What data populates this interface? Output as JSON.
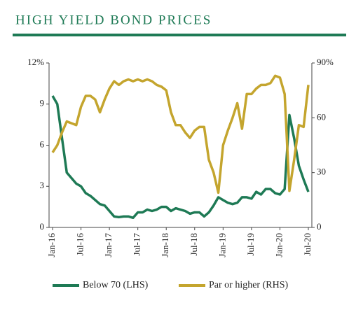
{
  "chart_data": {
    "type": "line",
    "title": "HIGH YIELD BOND PRICES",
    "categories": [
      "Jan-16",
      null,
      null,
      null,
      null,
      null,
      "Jul-16",
      null,
      null,
      null,
      null,
      null,
      "Jan-17",
      null,
      null,
      null,
      null,
      null,
      "Jul-17",
      null,
      null,
      null,
      null,
      null,
      "Jan-18",
      null,
      null,
      null,
      null,
      null,
      "Jul-18",
      null,
      null,
      null,
      null,
      null,
      "Jan-19",
      null,
      null,
      null,
      null,
      null,
      "Jul-19",
      null,
      null,
      null,
      null,
      null,
      "Jan-20",
      null,
      null,
      null,
      null,
      null,
      "Jul-20"
    ],
    "series": [
      {
        "name": "Below 70 (LHS)",
        "color": "#1e7a55",
        "values": [
          9.6,
          9.0,
          6.5,
          4.0,
          3.6,
          3.2,
          3.0,
          2.5,
          2.3,
          2.0,
          1.7,
          1.6,
          1.2,
          0.8,
          0.75,
          0.8,
          0.8,
          0.7,
          1.1,
          1.1,
          1.3,
          1.2,
          1.3,
          1.5,
          1.5,
          1.2,
          1.4,
          1.3,
          1.2,
          1.0,
          1.1,
          1.1,
          0.8,
          1.1,
          1.6,
          2.2,
          2.0,
          1.8,
          1.7,
          1.8,
          2.2,
          2.2,
          2.1,
          2.6,
          2.4,
          2.8,
          2.8,
          2.5,
          2.4,
          2.8,
          8.2,
          6.5,
          4.5,
          3.5,
          2.6
        ]
      },
      {
        "name": "Par or higher (RHS)",
        "color": "#c4a52e",
        "axis": "y2",
        "values": [
          41,
          45,
          52,
          58,
          57,
          56,
          66,
          72,
          72,
          70,
          63,
          70,
          76,
          80,
          78,
          80,
          81,
          80,
          81,
          80,
          81,
          80,
          78,
          77,
          75,
          63,
          56,
          56,
          52,
          49,
          53,
          55,
          55,
          37,
          30,
          19,
          45,
          53,
          60,
          68,
          54,
          73,
          73,
          76,
          78,
          78,
          79,
          83,
          82,
          73,
          20,
          37,
          56,
          55,
          78
        ]
      }
    ],
    "ylim": [
      0,
      12
    ],
    "yticks": [
      0,
      3,
      6,
      9,
      {
        "value": 12,
        "label": "12%"
      }
    ],
    "y2lim": [
      0,
      90
    ],
    "y2ticks": [
      0,
      30,
      60,
      {
        "value": 90,
        "label": "90%"
      }
    ],
    "grid": false,
    "legend": "bottom"
  }
}
